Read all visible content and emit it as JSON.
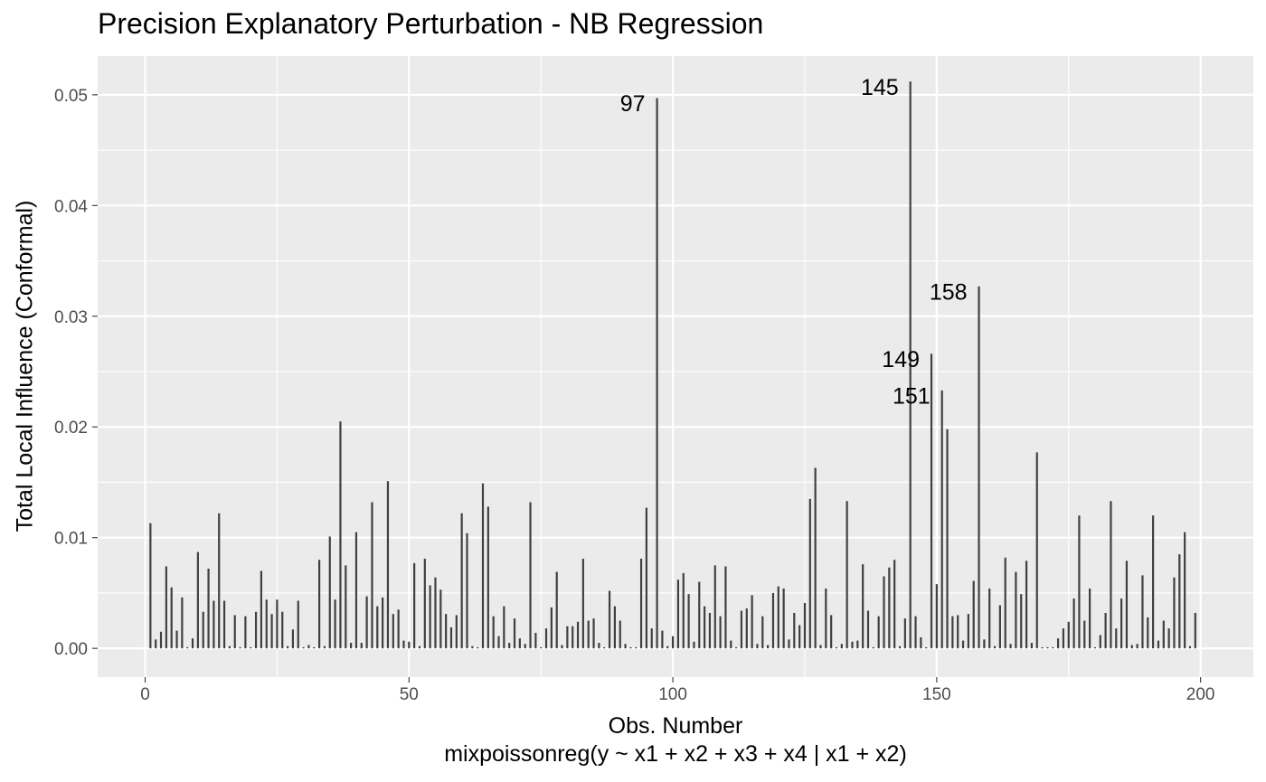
{
  "chart_data": {
    "type": "bar",
    "title": "Precision Explanatory Perturbation - NB Regression",
    "xlabel": "Obs. Number",
    "caption": "mixpoissonreg(y ~ x1 + x2 + x3 + x4 | x1 + x2)",
    "ylabel": "Total Local Influence (Conformal)",
    "xlim": [
      -9,
      210
    ],
    "ylim": [
      -0.0026,
      0.0535
    ],
    "x_ticks": [
      0,
      50,
      100,
      150,
      200
    ],
    "x_tick_labels": [
      "0",
      "50",
      "100",
      "150",
      "200"
    ],
    "y_ticks": [
      0.0,
      0.01,
      0.02,
      0.03,
      0.04,
      0.05
    ],
    "y_tick_labels": [
      "0.00",
      "0.01",
      "0.02",
      "0.03",
      "0.04",
      "0.05"
    ],
    "grid": true,
    "bar_color": "#404040",
    "panel_background": "#ebebeb",
    "grid_color": "#ffffff",
    "values": [
      0.0113,
      0.0008,
      0.0015,
      0.0074,
      0.0055,
      0.0016,
      0.0046,
      0.0001,
      0.0009,
      0.0087,
      0.0033,
      0.0072,
      0.0043,
      0.0122,
      0.0043,
      0.0002,
      0.003,
      0.0001,
      0.0029,
      0.0001,
      0.0033,
      0.007,
      0.0044,
      0.0031,
      0.0044,
      0.0033,
      0.0002,
      0.0017,
      0.0043,
      0.0001,
      0.0003,
      0.0001,
      0.008,
      0.0002,
      0.0101,
      0.0044,
      0.0205,
      0.0075,
      0.0005,
      0.0105,
      0.0005,
      0.0047,
      0.0132,
      0.0038,
      0.0046,
      0.0151,
      0.0031,
      0.0035,
      0.0007,
      0.0006,
      0.0077,
      0.0002,
      0.0081,
      0.0057,
      0.0064,
      0.0053,
      0.0031,
      0.0019,
      0.003,
      0.0122,
      0.0104,
      0.0002,
      0.0001,
      0.0149,
      0.0128,
      0.0029,
      0.0011,
      0.0038,
      0.0005,
      0.0027,
      0.0009,
      0.0004,
      0.0132,
      0.0014,
      0.0001,
      0.0018,
      0.0037,
      0.0069,
      0.0003,
      0.002,
      0.002,
      0.0024,
      0.0081,
      0.0025,
      0.0027,
      0.0005,
      0.0001,
      0.0052,
      0.0038,
      0.0025,
      0.0004,
      0.0001,
      0.0001,
      0.0081,
      0.0127,
      0.0018,
      0.0497,
      0.0016,
      0.0002,
      0.0011,
      0.0062,
      0.0068,
      0.0049,
      0.0006,
      0.006,
      0.0038,
      0.0032,
      0.0075,
      0.0029,
      0.0074,
      0.0007,
      0.0001,
      0.0034,
      0.0036,
      0.0048,
      0.0004,
      0.0029,
      0.0003,
      0.005,
      0.0056,
      0.0054,
      0.0008,
      0.0032,
      0.0021,
      0.0041,
      0.0135,
      0.0163,
      0.0003,
      0.0054,
      0.003,
      0.0001,
      0.0004,
      0.0133,
      0.0006,
      0.0007,
      0.0076,
      0.0034,
      0.0001,
      0.0029,
      0.0065,
      0.0073,
      0.008,
      0.0002,
      0.0027,
      0.0512,
      0.0029,
      0.001,
      0.0001,
      0.0266,
      0.0058,
      0.0233,
      0.0198,
      0.0029,
      0.003,
      0.0007,
      0.0031,
      0.0061,
      0.0327,
      0.0008,
      0.0054,
      0.0002,
      0.0039,
      0.0082,
      0.0004,
      0.0069,
      0.0049,
      0.0079,
      0.0005,
      0.0177,
      0.0001,
      0.0001,
      0.0001,
      0.0009,
      0.0018,
      0.0024,
      0.0045,
      0.012,
      0.0025,
      0.0054,
      0.0001,
      0.0012,
      0.0032,
      0.0133,
      0.0018,
      0.0045,
      0.0079,
      0.0003,
      0.0004,
      0.0066,
      0.0028,
      0.012,
      0.0007,
      0.0025,
      0.0018,
      0.0064,
      0.0085,
      0.0105,
      0.0002,
      0.0032
    ],
    "annotations": [
      {
        "label": "97",
        "x": 97,
        "y": 0.0497
      },
      {
        "label": "145",
        "x": 145,
        "y": 0.0512
      },
      {
        "label": "158",
        "x": 158,
        "y": 0.0327
      },
      {
        "label": "149",
        "x": 149,
        "y": 0.0266
      },
      {
        "label": "151",
        "x": 151,
        "y": 0.0233
      }
    ]
  }
}
